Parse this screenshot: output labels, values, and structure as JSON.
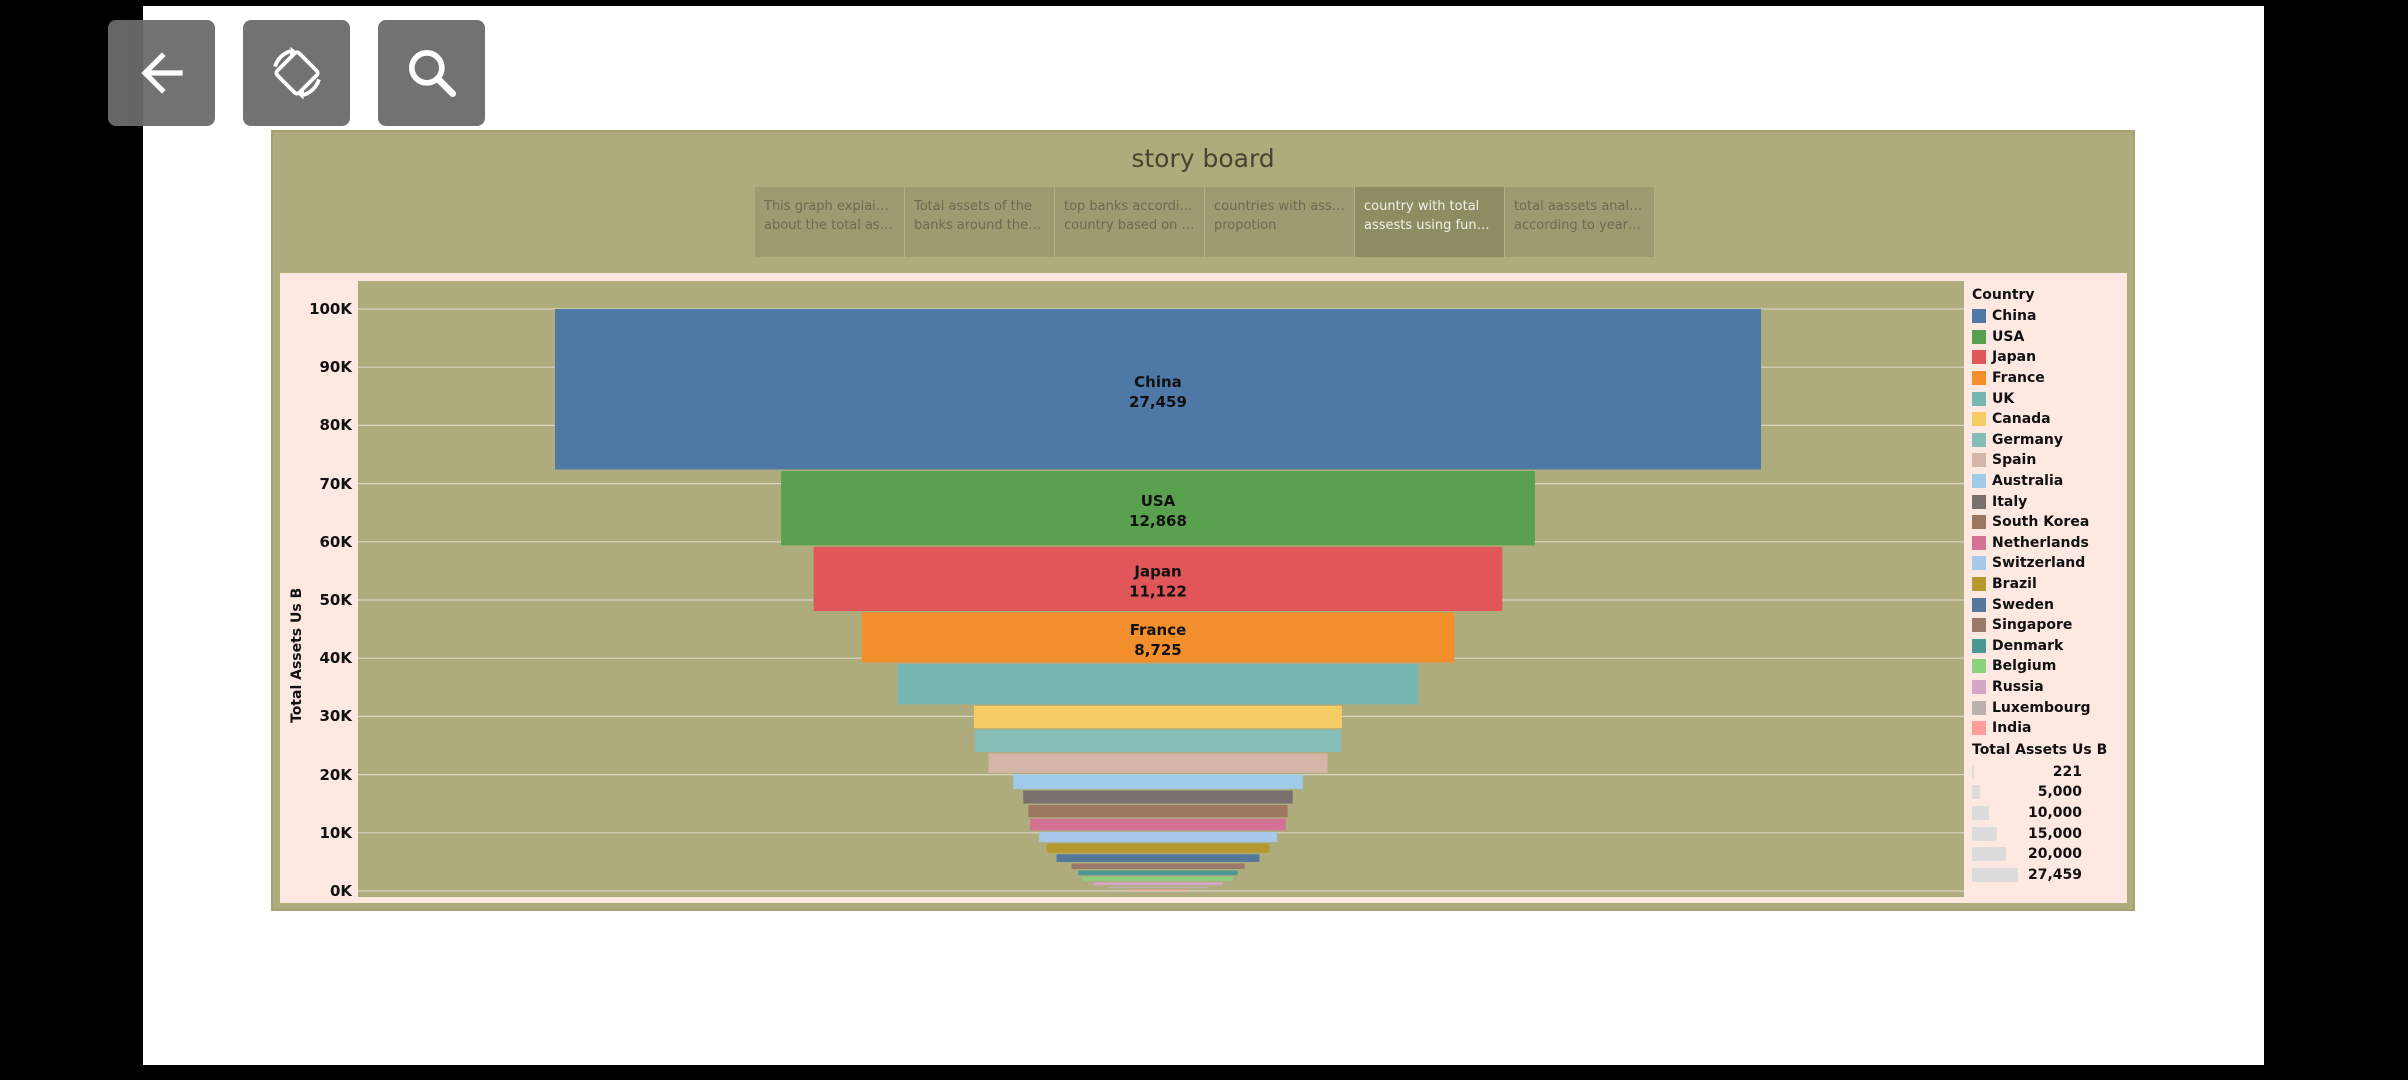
{
  "controls": [
    {
      "name": "back-button",
      "icon": "arrow-left-icon"
    },
    {
      "name": "rotate-button",
      "icon": "screen-rotation-icon"
    },
    {
      "name": "search-button",
      "icon": "magnifier-icon"
    }
  ],
  "story": {
    "title": "story board",
    "tabs": [
      {
        "line1": "This graph explains me",
        "line2": "about the total asse...",
        "active": false
      },
      {
        "line1": "Total assets of the",
        "line2": "banks around the wor...",
        "active": false
      },
      {
        "line1": "top banks according to",
        "line2": "country based on tota...",
        "active": false
      },
      {
        "line1": "countries with assests",
        "line2": "propotion",
        "active": false
      },
      {
        "line1": "country with total",
        "line2": "assests using funnel c...",
        "active": true
      },
      {
        "line1": "total aassets analysis",
        "line2": "according to year & q...",
        "active": false
      }
    ]
  },
  "chart_data": {
    "type": "bar",
    "subtype": "funnel",
    "ylabel": "Total Assets Us B",
    "yticks": [
      "100K",
      "90K",
      "80K",
      "70K",
      "60K",
      "50K",
      "40K",
      "30K",
      "20K",
      "10K",
      "0K"
    ],
    "ylim": [
      0,
      100000
    ],
    "grid": true,
    "legend_position": "right",
    "series": [
      {
        "name": "China",
        "value": 27459,
        "label": "27,459",
        "color": "#4e79a7"
      },
      {
        "name": "USA",
        "value": 12868,
        "label": "12,868",
        "color": "#59a14f"
      },
      {
        "name": "Japan",
        "value": 11122,
        "label": "11,122",
        "color": "#e15759"
      },
      {
        "name": "France",
        "value": 8725,
        "label": "8,725",
        "color": "#f28e2b"
      },
      {
        "name": "UK",
        "value": 7100,
        "label": "",
        "color": "#76b7b2"
      },
      {
        "name": "Canada",
        "value": 4050,
        "label": "",
        "color": "#f4cc63"
      },
      {
        "name": "Germany",
        "value": 4020,
        "label": "",
        "color": "#86bcb6"
      },
      {
        "name": "Spain",
        "value": 3550,
        "label": "",
        "color": "#d4b5a8"
      },
      {
        "name": "Australia",
        "value": 2750,
        "label": "",
        "color": "#a0cbe8"
      },
      {
        "name": "Italy",
        "value": 2450,
        "label": "",
        "color": "#79706e"
      },
      {
        "name": "South Korea",
        "value": 2300,
        "label": "",
        "color": "#9d7660"
      },
      {
        "name": "Netherlands",
        "value": 2250,
        "label": "",
        "color": "#d37295"
      },
      {
        "name": "Switzerland",
        "value": 2000,
        "label": "",
        "color": "#a5c8eb"
      },
      {
        "name": "Brazil",
        "value": 1800,
        "label": "",
        "color": "#b6992d"
      },
      {
        "name": "Sweden",
        "value": 1550,
        "label": "",
        "color": "#55779b"
      },
      {
        "name": "Singapore",
        "value": 1200,
        "label": "",
        "color": "#9c7a6b"
      },
      {
        "name": "Denmark",
        "value": 1050,
        "label": "",
        "color": "#499894"
      },
      {
        "name": "Belgium",
        "value": 950,
        "label": "",
        "color": "#8cd17d"
      },
      {
        "name": "Russia",
        "value": 750,
        "label": "",
        "color": "#d4a6c8"
      },
      {
        "name": "Luxembourg",
        "value": 500,
        "label": "",
        "color": "#bab0ac"
      },
      {
        "name": "India",
        "value": 221,
        "label": "",
        "color": "#ff9d9a"
      }
    ],
    "legend_title": "Country",
    "size_legend_title": "Total Assets Us B",
    "size_legend": [
      {
        "label": "221",
        "value": 221
      },
      {
        "label": "5,000",
        "value": 5000
      },
      {
        "label": "10,000",
        "value": 10000
      },
      {
        "label": "15,000",
        "value": 15000
      },
      {
        "label": "20,000",
        "value": 20000
      },
      {
        "label": "27,459",
        "value": 27459
      }
    ]
  }
}
